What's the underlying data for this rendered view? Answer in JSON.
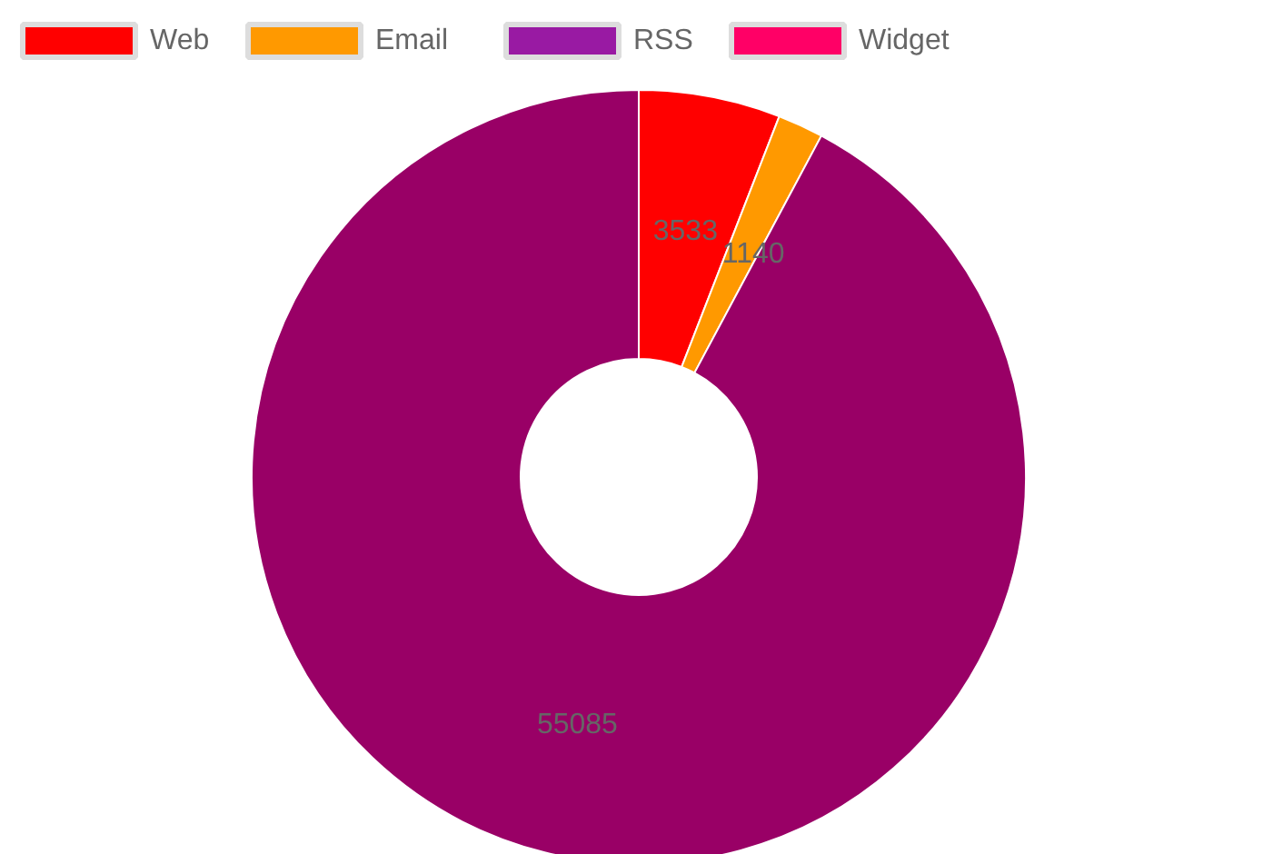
{
  "chart_data": {
    "type": "donut",
    "categories": [
      "Web",
      "Email",
      "RSS",
      "Widget",
      null
    ],
    "values": [
      3533,
      1140,
      0,
      0,
      55085
    ],
    "colors": [
      "#ff0000",
      "#ff9900",
      "#991aa3",
      "#ff0066",
      "#990066"
    ],
    "data_labels": true,
    "legend": "top"
  }
}
